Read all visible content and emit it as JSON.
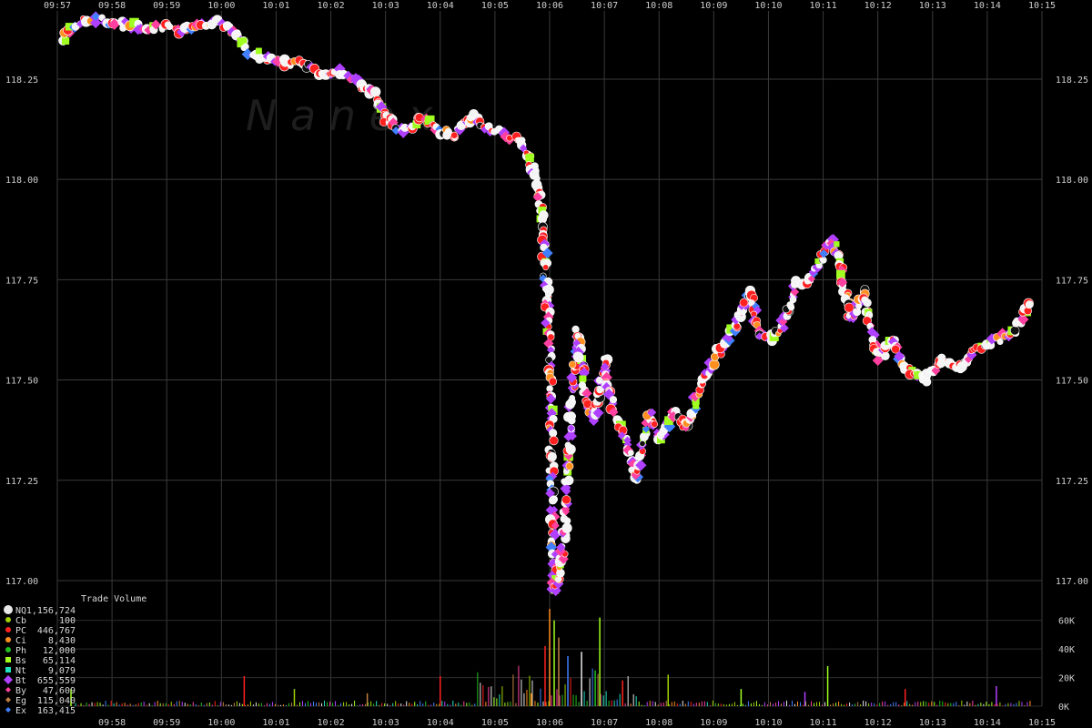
{
  "watermark": "N a n e x",
  "chart_data": [
    {
      "type": "scatter",
      "title": "",
      "x_ticks_top": [
        "09:57",
        "09:58",
        "09:59",
        "10:00",
        "10:01",
        "10:02",
        "10:03",
        "10:04",
        "10:05",
        "10:06",
        "10:07",
        "10:08",
        "10:09",
        "10:10",
        "10:11",
        "10:12",
        "10:13",
        "10:14",
        "10:15"
      ],
      "x_ticks_bottom": [
        "09:58",
        "09:59",
        "10:00",
        "10:01",
        "10:02",
        "10:03",
        "10:04",
        "10:05",
        "10:06",
        "10:07",
        "10:08",
        "10:09",
        "10:10",
        "10:11",
        "10:12",
        "10:13",
        "10:14",
        "10:15"
      ],
      "y_ticks": [
        "118.25",
        "118.00",
        "117.75",
        "117.50",
        "117.25",
        "117.00"
      ],
      "xlim": [
        "09:57",
        "10:15"
      ],
      "ylim": [
        116.95,
        118.42
      ],
      "grid": true,
      "price_path": [
        [
          "09:57:05",
          118.34
        ],
        [
          "09:57:20",
          118.39
        ],
        [
          "09:57:40",
          118.4
        ],
        [
          "09:58:00",
          118.39
        ],
        [
          "09:58:30",
          118.38
        ],
        [
          "09:59:00",
          118.38
        ],
        [
          "09:59:20",
          118.37
        ],
        [
          "09:59:40",
          118.39
        ],
        [
          "10:00:00",
          118.39
        ],
        [
          "10:00:15",
          118.36
        ],
        [
          "10:00:30",
          118.32
        ],
        [
          "10:00:50",
          118.3
        ],
        [
          "10:01:10",
          118.29
        ],
        [
          "10:01:30",
          118.29
        ],
        [
          "10:01:50",
          118.26
        ],
        [
          "10:02:10",
          118.27
        ],
        [
          "10:02:30",
          118.24
        ],
        [
          "10:02:50",
          118.21
        ],
        [
          "10:03:00",
          118.15
        ],
        [
          "10:03:20",
          118.12
        ],
        [
          "10:03:40",
          118.15
        ],
        [
          "10:04:00",
          118.12
        ],
        [
          "10:04:15",
          118.11
        ],
        [
          "10:04:35",
          118.16
        ],
        [
          "10:04:50",
          118.13
        ],
        [
          "10:05:10",
          118.11
        ],
        [
          "10:05:30",
          118.09
        ],
        [
          "10:05:40",
          118.04
        ],
        [
          "10:05:50",
          117.95
        ],
        [
          "10:05:55",
          117.8
        ],
        [
          "10:06:00",
          117.55
        ],
        [
          "10:06:02",
          117.3
        ],
        [
          "10:06:05",
          116.97
        ],
        [
          "10:06:10",
          117.02
        ],
        [
          "10:06:15",
          117.08
        ],
        [
          "10:06:20",
          117.3
        ],
        [
          "10:06:30",
          117.62
        ],
        [
          "10:06:40",
          117.45
        ],
        [
          "10:06:50",
          117.4
        ],
        [
          "10:07:00",
          117.55
        ],
        [
          "10:07:10",
          117.42
        ],
        [
          "10:07:20",
          117.37
        ],
        [
          "10:07:35",
          117.25
        ],
        [
          "10:07:50",
          117.42
        ],
        [
          "10:08:00",
          117.35
        ],
        [
          "10:08:15",
          117.42
        ],
        [
          "10:08:30",
          117.38
        ],
        [
          "10:08:45",
          117.48
        ],
        [
          "10:09:00",
          117.55
        ],
        [
          "10:09:20",
          117.62
        ],
        [
          "10:09:40",
          117.72
        ],
        [
          "10:09:50",
          117.62
        ],
        [
          "10:10:00",
          117.6
        ],
        [
          "10:10:15",
          117.63
        ],
        [
          "10:10:30",
          117.74
        ],
        [
          "10:10:50",
          117.75
        ],
        [
          "10:11:00",
          117.82
        ],
        [
          "10:11:10",
          117.85
        ],
        [
          "10:11:20",
          117.78
        ],
        [
          "10:11:30",
          117.65
        ],
        [
          "10:11:45",
          117.72
        ],
        [
          "10:12:00",
          117.55
        ],
        [
          "10:12:15",
          117.6
        ],
        [
          "10:12:30",
          117.53
        ],
        [
          "10:12:50",
          117.5
        ],
        [
          "10:13:10",
          117.55
        ],
        [
          "10:13:30",
          117.53
        ],
        [
          "10:13:50",
          117.58
        ],
        [
          "10:14:10",
          117.6
        ],
        [
          "10:14:30",
          117.62
        ],
        [
          "10:14:50",
          117.7
        ]
      ]
    },
    {
      "type": "bar",
      "ylabel": "Trade Volume",
      "y_ticks": [
        "60K",
        "40K",
        "20K",
        "0K"
      ],
      "ylim": [
        0,
        70000
      ],
      "spikes": [
        [
          "09:57:15",
          12000
        ],
        [
          "10:00:25",
          21000
        ],
        [
          "10:01:20",
          12000
        ],
        [
          "10:02:40",
          9000
        ],
        [
          "10:04:00",
          21000
        ],
        [
          "10:05:40",
          9000
        ],
        [
          "10:05:55",
          42000
        ],
        [
          "10:06:00",
          68000
        ],
        [
          "10:06:05",
          60000
        ],
        [
          "10:06:10",
          48000
        ],
        [
          "10:06:20",
          35000
        ],
        [
          "10:06:35",
          38000
        ],
        [
          "10:06:50",
          25000
        ],
        [
          "10:06:55",
          62000
        ],
        [
          "10:07:20",
          18000
        ],
        [
          "10:08:10",
          22000
        ],
        [
          "10:09:30",
          12000
        ],
        [
          "10:10:40",
          10000
        ],
        [
          "10:11:05",
          28000
        ],
        [
          "10:12:30",
          12000
        ],
        [
          "10:14:10",
          14000
        ]
      ],
      "legend_title": "Trade Volume",
      "legend": [
        {
          "code": "NQ",
          "value": "1,156,724",
          "color": "#e8e8e8",
          "shape": "circle-lg"
        },
        {
          "code": "Cb",
          "value": "100",
          "color": "#a0d000",
          "shape": "circle"
        },
        {
          "code": "PC",
          "value": "446,767",
          "color": "#ff2020",
          "shape": "circle"
        },
        {
          "code": "Ci",
          "value": "8,430",
          "color": "#ff9020",
          "shape": "circle"
        },
        {
          "code": "Ph",
          "value": "12,000",
          "color": "#20c020",
          "shape": "circle"
        },
        {
          "code": "Bs",
          "value": "65,114",
          "color": "#a0ff20",
          "shape": "square"
        },
        {
          "code": "Nt",
          "value": "9,079",
          "color": "#20e0c0",
          "shape": "square"
        },
        {
          "code": "Bt",
          "value": "655,559",
          "color": "#b040ff",
          "shape": "diamond-lg"
        },
        {
          "code": "By",
          "value": "47,609",
          "color": "#ff40a0",
          "shape": "diamond"
        },
        {
          "code": "Eg",
          "value": "115,040",
          "color": "#c08040",
          "shape": "diamond"
        },
        {
          "code": "Ex",
          "value": "163,415",
          "color": "#4080ff",
          "shape": "diamond"
        }
      ]
    }
  ]
}
